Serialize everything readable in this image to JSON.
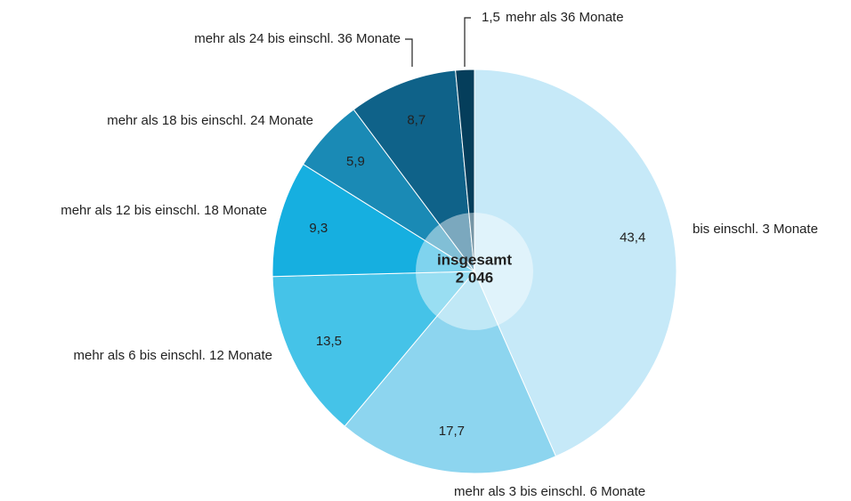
{
  "chart_data": {
    "type": "pie",
    "categories": [
      "bis einschl. 3 Monate",
      "mehr als 3 bis einschl. 6 Monate",
      "mehr als 6 bis einschl. 12 Monate",
      "mehr als 12 bis einschl. 18 Monate",
      "mehr als 18 bis einschl. 24 Monate",
      "mehr als 24 bis einschl. 36 Monate",
      "mehr als 36 Monate"
    ],
    "values": [
      43.4,
      17.7,
      13.5,
      9.3,
      5.9,
      8.7,
      1.5
    ],
    "value_labels": [
      "43,4",
      "17,7",
      "13,5",
      "9,3",
      "5,9",
      "8,7",
      "1,5"
    ],
    "colors": [
      "#c6e9f8",
      "#8dd5ef",
      "#45c3e8",
      "#16afe0",
      "#1a8ab5",
      "#0f6289",
      "#053e5b"
    ],
    "center_title": "insgesamt",
    "total": {
      "value": 2046,
      "label": "2 046"
    }
  }
}
